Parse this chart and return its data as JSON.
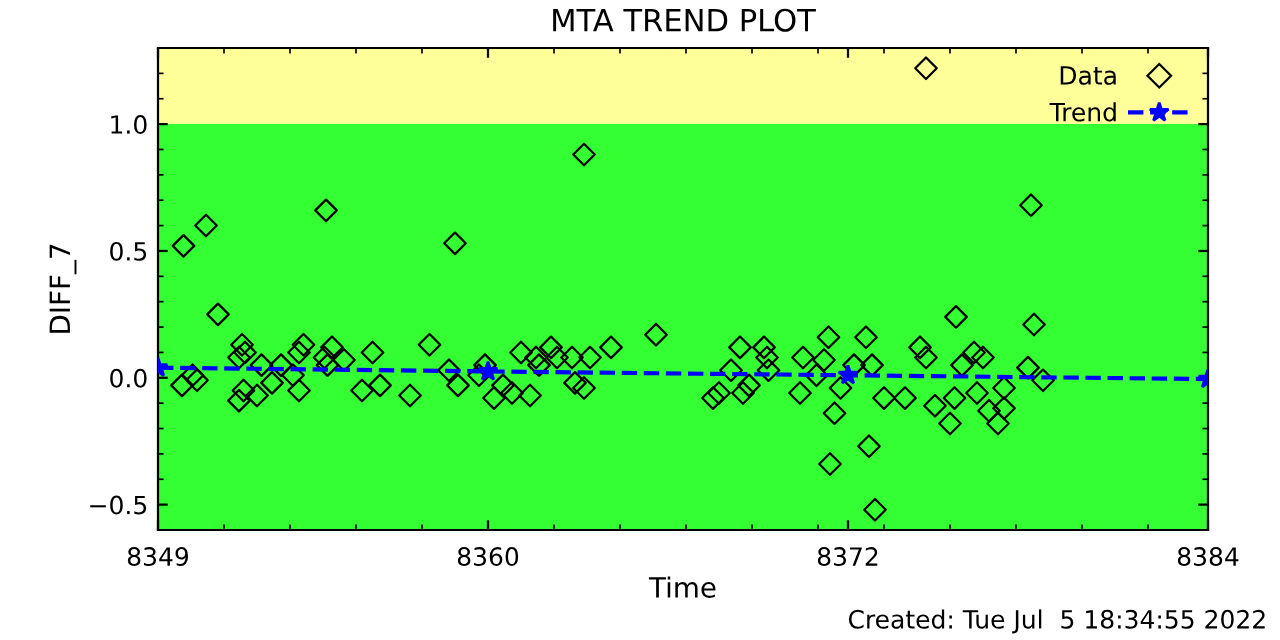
{
  "chart_data": {
    "type": "scatter",
    "title": "MTA TREND PLOT",
    "xlabel": "Time",
    "ylabel": "DIFF_7",
    "annotations": [
      "Created: Tue Jul  5 18:34:55 2022"
    ],
    "xlim": [
      8349,
      8384
    ],
    "xticks": [
      8349,
      8360,
      8372,
      8384
    ],
    "ylim": [
      -0.6,
      1.3
    ],
    "yticks": [
      {
        "value": -0.5,
        "label": "−0.5"
      },
      {
        "value": 0,
        "label": "0.0"
      },
      {
        "value": 0.5,
        "label": "0.5"
      },
      {
        "value": 1.0,
        "label": "1.0"
      }
    ],
    "bands": [
      {
        "axis": "y",
        "from": -0.6,
        "to": 1.0,
        "color": "#33ff33"
      },
      {
        "axis": "y",
        "from": 1.0,
        "to": 1.3,
        "color": "#ffff99"
      }
    ],
    "legend": "top right",
    "grid": false,
    "series": [
      {
        "name": "Data",
        "type": "scatter",
        "marker": "diamond",
        "color": "#000000",
        "x": [
          8349.8,
          8349.85,
          8350.15,
          8350.3,
          8350.6,
          8351.0,
          8351.7,
          8351.7,
          8351.8,
          8351.9,
          8351.85,
          8352.3,
          8352.45,
          8352.8,
          8353.1,
          8353.5,
          8353.7,
          8353.7,
          8353.85,
          8354.6,
          8354.55,
          8354.65,
          8354.8,
          8355.2,
          8355.8,
          8356.15,
          8356.4,
          8357.4,
          8358.05,
          8358.7,
          8358.9,
          8359.0,
          8359.7,
          8359.9,
          8360.2,
          8360.5,
          8360.8,
          8361.1,
          8361.4,
          8361.6,
          8361.7,
          8362.1,
          8362.3,
          8362.8,
          8362.9,
          8363.2,
          8363.2,
          8363.4,
          8364.1,
          8365.6,
          8367.5,
          8367.7,
          8368.1,
          8368.4,
          8368.5,
          8368.7,
          8369.2,
          8369.3,
          8369.35,
          8370.4,
          8370.5,
          8370.95,
          8371.2,
          8371.35,
          8371.4,
          8371.55,
          8371.75,
          8372.2,
          8372.6,
          8372.7,
          8372.8,
          8372.9,
          8373.2,
          8373.9,
          8374.4,
          8374.6,
          8374.6,
          8374.9,
          8375.4,
          8375.55,
          8375.6,
          8375.8,
          8376.2,
          8376.3,
          8376.5,
          8376.7,
          8377.0,
          8377.2,
          8377.2,
          8378.0,
          8378.1,
          8378.2,
          8378.5
        ],
        "values": [
          -0.03,
          0.52,
          0.01,
          -0.01,
          0.6,
          0.25,
          0.08,
          -0.09,
          0.13,
          0.1,
          -0.05,
          -0.07,
          0.05,
          -0.02,
          0.05,
          0.01,
          -0.05,
          0.1,
          0.13,
          0.66,
          0.08,
          0.05,
          0.12,
          0.07,
          -0.05,
          0.1,
          -0.03,
          -0.07,
          0.13,
          0.03,
          0.53,
          -0.03,
          0.01,
          0.05,
          -0.08,
          -0.03,
          -0.06,
          0.1,
          -0.07,
          0.08,
          0.05,
          0.12,
          0.08,
          0.08,
          -0.02,
          -0.04,
          0.88,
          0.08,
          0.12,
          0.17,
          -0.08,
          -0.06,
          0.03,
          0.12,
          -0.06,
          -0.03,
          0.12,
          0.08,
          0.03,
          -0.06,
          0.08,
          0.01,
          0.07,
          0.16,
          -0.34,
          -0.14,
          -0.04,
          0.05,
          0.16,
          -0.27,
          0.05,
          -0.52,
          -0.08,
          -0.08,
          0.12,
          1.22,
          0.08,
          -0.11,
          -0.18,
          -0.08,
          0.24,
          0.05,
          0.1,
          -0.06,
          0.08,
          -0.13,
          -0.18,
          -0.12,
          -0.04,
          0.04,
          0.68,
          0.21,
          -0.01
        ]
      },
      {
        "name": "Trend",
        "type": "line",
        "marker": "star",
        "line_style": "dashed",
        "color": "#0000ff",
        "x": [
          8349,
          8360,
          8372,
          8384
        ],
        "values": [
          0.04,
          0.025,
          0.01,
          -0.005
        ]
      }
    ]
  }
}
